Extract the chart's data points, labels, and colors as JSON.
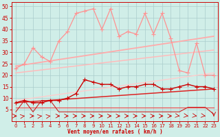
{
  "xlabel": "Vent moyen/en rafales ( km/h )",
  "xlim": [
    -0.5,
    23.5
  ],
  "ylim": [
    0,
    52
  ],
  "yticks": [
    5,
    10,
    15,
    20,
    25,
    30,
    35,
    40,
    45,
    50
  ],
  "xticks": [
    0,
    1,
    2,
    3,
    4,
    5,
    6,
    7,
    8,
    9,
    10,
    11,
    12,
    13,
    14,
    15,
    16,
    17,
    18,
    19,
    20,
    21,
    22,
    23
  ],
  "bg_color": "#d0eee8",
  "grid_color": "#aacccc",
  "series": [
    {
      "name": "pink_jagged_top",
      "x": [
        0,
        1,
        2,
        3,
        4,
        5,
        6,
        7,
        8,
        9,
        10,
        11,
        12,
        13,
        14,
        15,
        16,
        17,
        18,
        19,
        20,
        21,
        22,
        23
      ],
      "y": [
        23,
        25,
        32,
        28,
        26,
        35,
        39,
        47,
        48,
        49,
        40,
        49,
        37,
        39,
        38,
        47,
        38,
        47,
        36,
        22,
        21,
        34,
        20,
        20
      ],
      "color": "#ff9090",
      "lw": 0.9,
      "marker": "+",
      "ms": 4
    },
    {
      "name": "pink_trend_upper",
      "x": [
        0,
        23
      ],
      "y": [
        24,
        37
      ],
      "color": "#ffaaaa",
      "lw": 1.3,
      "marker": null,
      "ms": 0
    },
    {
      "name": "pink_trend_mid",
      "x": [
        0,
        23
      ],
      "y": [
        21,
        31
      ],
      "color": "#ffbbbb",
      "lw": 1.1,
      "marker": null,
      "ms": 0
    },
    {
      "name": "pink_trend_lower",
      "x": [
        0,
        23
      ],
      "y": [
        9,
        21
      ],
      "color": "#ffcccc",
      "lw": 1.0,
      "marker": null,
      "ms": 0
    },
    {
      "name": "red_jagged_mid",
      "x": [
        0,
        1,
        2,
        3,
        4,
        5,
        6,
        7,
        8,
        9,
        10,
        11,
        12,
        13,
        14,
        15,
        16,
        17,
        18,
        19,
        20,
        21,
        22,
        23
      ],
      "y": [
        8,
        9,
        8,
        8,
        9,
        9,
        10,
        12,
        18,
        17,
        16,
        16,
        14,
        15,
        15,
        16,
        16,
        14,
        14,
        15,
        16,
        15,
        15,
        14
      ],
      "color": "#cc0000",
      "lw": 1.0,
      "marker": "+",
      "ms": 4
    },
    {
      "name": "red_trend_line",
      "x": [
        0,
        23
      ],
      "y": [
        8,
        14
      ],
      "color": "#dd2222",
      "lw": 1.1,
      "marker": null,
      "ms": 0
    },
    {
      "name": "red_flat_lower",
      "x": [
        0,
        1,
        2,
        3,
        4,
        5,
        6,
        7,
        8,
        9,
        10,
        11,
        12,
        13,
        14,
        15,
        16,
        17,
        18,
        19,
        20,
        21,
        22,
        23
      ],
      "y": [
        6,
        6,
        6,
        6,
        6,
        6,
        6,
        6,
        6,
        6,
        6,
        6,
        6,
        6,
        6,
        6,
        6,
        6,
        6,
        6,
        6,
        6,
        6,
        6
      ],
      "color": "#ee5555",
      "lw": 0.9,
      "marker": null,
      "ms": 0
    },
    {
      "name": "red_bottom_jagged",
      "x": [
        0,
        1,
        2,
        3,
        4,
        5,
        6,
        7,
        8,
        9,
        10,
        11,
        12,
        13,
        14,
        15,
        16,
        17,
        18,
        19,
        20,
        21,
        22,
        23
      ],
      "y": [
        4,
        9,
        4,
        9,
        9,
        4,
        4,
        4,
        4,
        4,
        4,
        4,
        4,
        4,
        4,
        4,
        4,
        4,
        4,
        4,
        6,
        6,
        6,
        3
      ],
      "color": "#cc2222",
      "lw": 0.8,
      "marker": null,
      "ms": 0
    }
  ],
  "arrow_angles": [
    0,
    45,
    0,
    45,
    45,
    0,
    0,
    0,
    0,
    0,
    0,
    0,
    0,
    0,
    0,
    0,
    0,
    0,
    0,
    315,
    315,
    315,
    315,
    270
  ]
}
